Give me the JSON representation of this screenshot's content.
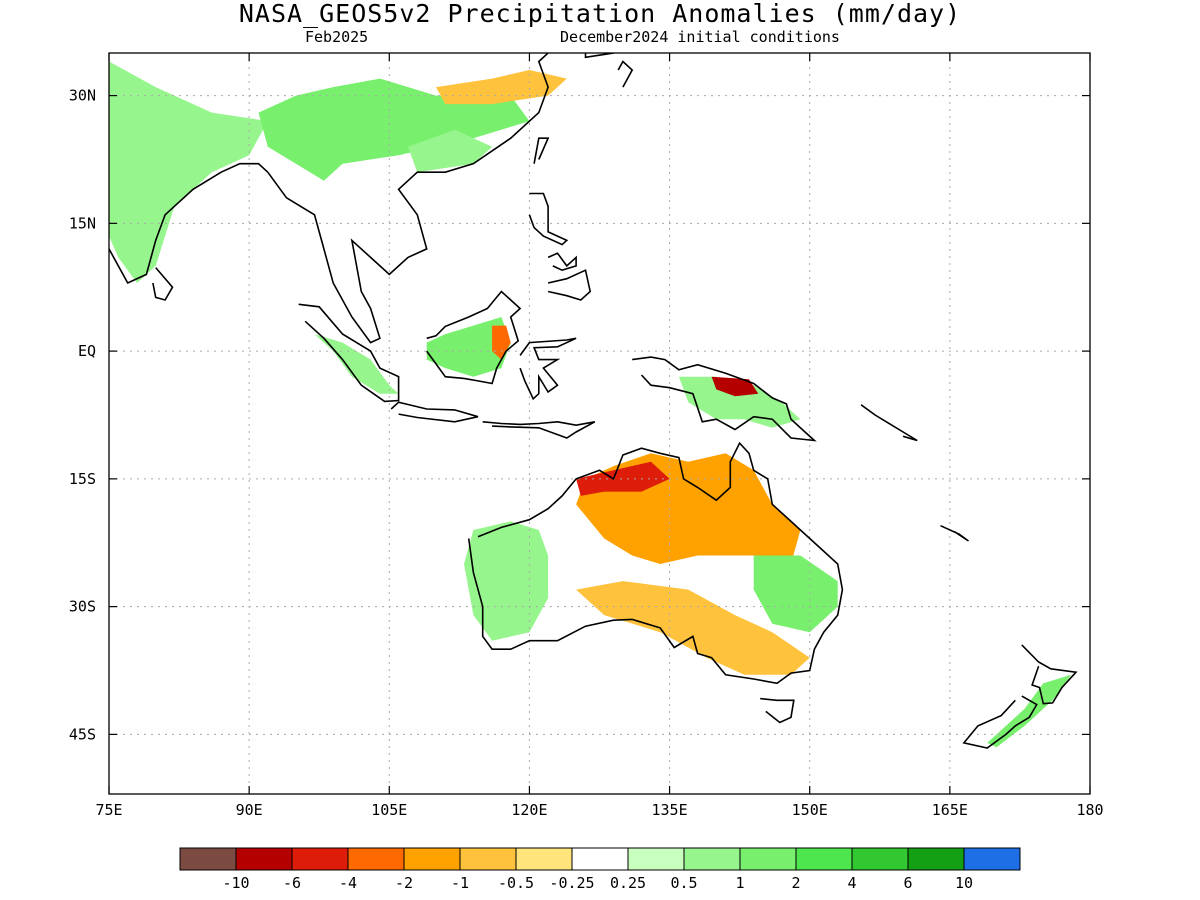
{
  "title": "NASA_GEOS5v2 Precipitation Anomalies (mm/day)",
  "subtitle_left": "Feb2025",
  "subtitle_right": "December2024 initial conditions",
  "map": {
    "lon_range": [
      75,
      180
    ],
    "lat_range": [
      -52,
      35
    ],
    "lon_ticks": [
      {
        "v": 75,
        "label": "75E"
      },
      {
        "v": 90,
        "label": "90E"
      },
      {
        "v": 105,
        "label": "105E"
      },
      {
        "v": 120,
        "label": "120E"
      },
      {
        "v": 135,
        "label": "135E"
      },
      {
        "v": 150,
        "label": "150E"
      },
      {
        "v": 165,
        "label": "165E"
      },
      {
        "v": 180,
        "label": "180"
      }
    ],
    "lat_ticks": [
      {
        "v": 30,
        "label": "30N"
      },
      {
        "v": 15,
        "label": "15N"
      },
      {
        "v": 0,
        "label": "EQ"
      },
      {
        "v": -15,
        "label": "15S"
      },
      {
        "v": -30,
        "label": "30S"
      },
      {
        "v": -45,
        "label": "45S"
      }
    ],
    "grid": true,
    "coastline_color": "#000000"
  },
  "colorbar": {
    "colors": [
      "#7b4b42",
      "#b50000",
      "#dd1c0a",
      "#ff6a00",
      "#ffa200",
      "#ffc23d",
      "#ffe57c",
      "#ffffff",
      "#c8ffbe",
      "#96f58c",
      "#78f06e",
      "#4ee64e",
      "#32c832",
      "#14a014",
      "#1e6ee6"
    ],
    "labels": [
      "-10",
      "-6",
      "-4",
      "-2",
      "-1",
      "-0.5",
      "-0.25",
      "0.25",
      "0.5",
      "1",
      "2",
      "4",
      "6",
      "10"
    ]
  },
  "anomaly_regions": [
    {
      "name": "India",
      "level": "0.5"
    },
    {
      "name": "Himalaya / Tibet",
      "level": "1"
    },
    {
      "name": "Southern China",
      "level": "0.5"
    },
    {
      "name": "Central China",
      "level": "-0.5"
    },
    {
      "name": "Sumatra",
      "level": "0.5"
    },
    {
      "name": "Borneo",
      "level": "1"
    },
    {
      "name": "East Borneo",
      "level": "-2"
    },
    {
      "name": "New Guinea",
      "level": "0.5"
    },
    {
      "name": "Northern New Guinea",
      "level": "-6"
    },
    {
      "name": "Northern Australia",
      "level": "-1"
    },
    {
      "name": "Kimberley",
      "level": "-4"
    },
    {
      "name": "Western Australia",
      "level": "0.5"
    },
    {
      "name": "Eastern Australia",
      "level": "1"
    },
    {
      "name": "Southeast Australia",
      "level": "-0.5"
    },
    {
      "name": "New Zealand",
      "level": "1"
    }
  ]
}
